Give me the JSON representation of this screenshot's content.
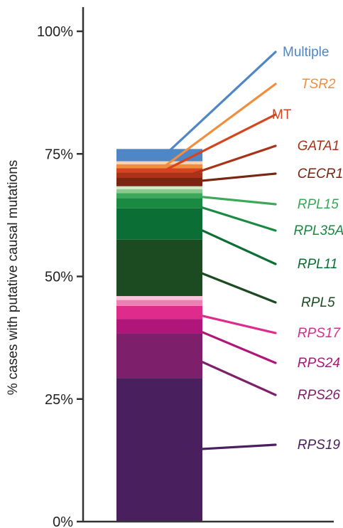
{
  "chart_data": {
    "type": "bar",
    "stacked": true,
    "ylabel": "% cases with putative causal mutations",
    "ylim": [
      0,
      100
    ],
    "yticks": [
      {
        "value": 0,
        "label": "0%"
      },
      {
        "value": 25,
        "label": "25%"
      },
      {
        "value": 50,
        "label": "50%"
      },
      {
        "value": 75,
        "label": "75%"
      },
      {
        "value": 100,
        "label": "100%"
      }
    ],
    "grid": false,
    "segments": [
      {
        "name": "RPS19",
        "value": 29.3,
        "color": "#4a1f5e",
        "italic": true
      },
      {
        "name": "RPS26",
        "value": 9.1,
        "color": "#7d1f6b",
        "italic": true
      },
      {
        "name": "RPS24",
        "value": 2.9,
        "color": "#b0157a",
        "italic": true
      },
      {
        "name": "RPS17",
        "value": 2.7,
        "color": "#de2b8c",
        "italic": true
      },
      {
        "name": "",
        "value": 1.2,
        "color": "#f07fb4",
        "italic": true
      },
      {
        "name": "",
        "value": 0.8,
        "color": "#f9c4dc",
        "italic": true
      },
      {
        "name": "RPL5",
        "value": 11.5,
        "color": "#1c4b22",
        "italic": true
      },
      {
        "name": "RPL11",
        "value": 6.4,
        "color": "#0b6e34",
        "italic": true
      },
      {
        "name": "RPL35A",
        "value": 2.1,
        "color": "#1a8a43",
        "italic": true
      },
      {
        "name": "RPL15",
        "value": 1.0,
        "color": "#3ca85a",
        "italic": true
      },
      {
        "name": "",
        "value": 0.8,
        "color": "#8cc98d",
        "italic": true
      },
      {
        "name": "",
        "value": 0.6,
        "color": "#cde8c6",
        "italic": true
      },
      {
        "name": "CECR1",
        "value": 1.7,
        "color": "#7a2512",
        "italic": true
      },
      {
        "name": "GATA1",
        "value": 1.1,
        "color": "#a93218",
        "italic": true
      },
      {
        "name": "MT",
        "value": 0.9,
        "color": "#d5441e",
        "italic": false
      },
      {
        "name": "TSR2",
        "value": 0.8,
        "color": "#f08e3e",
        "italic": true
      },
      {
        "name": "",
        "value": 0.6,
        "color": "#fbd3ae",
        "italic": true
      },
      {
        "name": "Multiple",
        "value": 2.5,
        "color": "#4f86c6",
        "italic": false
      }
    ]
  }
}
